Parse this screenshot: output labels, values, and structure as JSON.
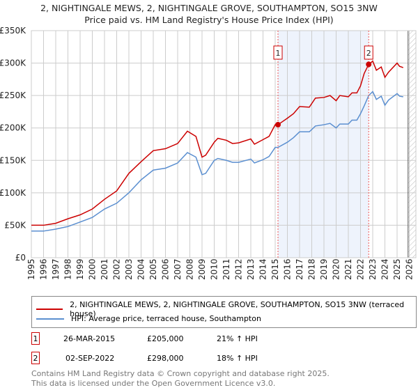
{
  "title": "2, NIGHTINGALE MEWS, 2, NIGHTINGALE GROVE, SOUTHAMPTON, SO15 3NW",
  "subtitle": "Price paid vs. HM Land Registry's House Price Index (HPI)",
  "chart_data": {
    "type": "line",
    "ylim": [
      0,
      350000
    ],
    "xlim": [
      1995,
      2026
    ],
    "yticks": [
      {
        "v": 0,
        "label": "£0"
      },
      {
        "v": 50000,
        "label": "£50K"
      },
      {
        "v": 100000,
        "label": "£100K"
      },
      {
        "v": 150000,
        "label": "£150K"
      },
      {
        "v": 200000,
        "label": "£200K"
      },
      {
        "v": 250000,
        "label": "£250K"
      },
      {
        "v": 300000,
        "label": "£300K"
      },
      {
        "v": 350000,
        "label": "£350K"
      }
    ],
    "xticks": [
      "1995",
      "1996",
      "1997",
      "1998",
      "1999",
      "2000",
      "2001",
      "2002",
      "2003",
      "2004",
      "2005",
      "2006",
      "2007",
      "2008",
      "2009",
      "2010",
      "2011",
      "2012",
      "2013",
      "2014",
      "2015",
      "2016",
      "2017",
      "2018",
      "2019",
      "2020",
      "2021",
      "2022",
      "2023",
      "2024",
      "2025",
      "2026"
    ],
    "x": [
      1995,
      1996,
      1997,
      1998,
      1999,
      2000,
      2001,
      2002,
      2003,
      2004,
      2005,
      2006,
      2007,
      2007.8,
      2008.5,
      2009,
      2009.3,
      2010,
      2010.3,
      2011,
      2011.5,
      2012,
      2013,
      2013.3,
      2014,
      2014.5,
      2015,
      2015.23,
      2016,
      2016.5,
      2017,
      2017.8,
      2018.3,
      2019,
      2019.5,
      2020,
      2020.3,
      2021,
      2021.3,
      2021.7,
      2022,
      2022.3,
      2022.67,
      2023,
      2023.3,
      2023.7,
      2024,
      2024.3,
      2025,
      2025.2,
      2025.5
    ],
    "series": [
      {
        "name": "2, NIGHTINGALE MEWS, 2, NIGHTINGALE GROVE, SOUTHAMPTON, SO15 3NW (terraced house)",
        "color": "#cc0000",
        "values": [
          50,
          50,
          53,
          60,
          66,
          75,
          90,
          103,
          130,
          148,
          165,
          168,
          176,
          195,
          187,
          155,
          158,
          178,
          184,
          181,
          176,
          177,
          183,
          175,
          182,
          187,
          205,
          205,
          215,
          222,
          233,
          232,
          246,
          247,
          250,
          242,
          250,
          248,
          254,
          254,
          265,
          284,
          298,
          303,
          289,
          294,
          278,
          286,
          300,
          295,
          293
        ]
      },
      {
        "name": "HPI: Average price, terraced house, Southampton",
        "color": "#5b8fd0",
        "values": [
          41,
          41,
          44,
          48,
          55,
          62,
          75,
          84,
          100,
          120,
          135,
          138,
          146,
          162,
          155,
          128,
          130,
          150,
          153,
          150,
          147,
          147,
          152,
          146,
          151,
          156,
          170,
          170,
          178,
          185,
          194,
          194,
          203,
          205,
          207,
          200,
          206,
          206,
          212,
          212,
          222,
          234,
          250,
          256,
          244,
          249,
          235,
          243,
          253,
          249,
          248
        ]
      }
    ],
    "value_unit": "thousand GBP",
    "sales": [
      {
        "id": "1",
        "x": 2015.23,
        "price": 205000,
        "date": "26-MAR-2015",
        "price_label": "£205,000",
        "hpi": "21% ↑ HPI"
      },
      {
        "id": "2",
        "x": 2022.67,
        "price": 298000,
        "date": "02-SEP-2022",
        "price_label": "£298,000",
        "hpi": "18% ↑ HPI"
      }
    ],
    "shaded_range": [
      2015.23,
      2022.67
    ],
    "forecast_from": 2025.9
  },
  "footer": [
    "Contains HM Land Registry data © Crown copyright and database right 2025.",
    "This data is licensed under the Open Government Licence v3.0."
  ]
}
